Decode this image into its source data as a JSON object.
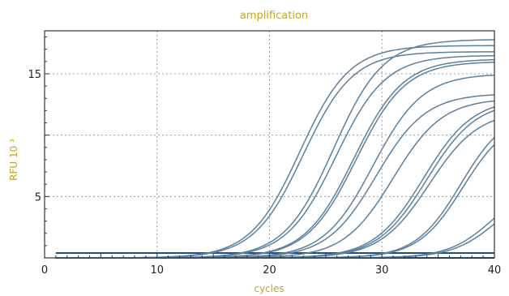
{
  "chart_data": {
    "type": "line",
    "title": "amplification",
    "xlabel": "cycles",
    "ylabel": "RFU 10 ³",
    "xlim": [
      0,
      40
    ],
    "ylim": [
      0,
      18.5
    ],
    "x_ticks": [
      0,
      10,
      20,
      30,
      40
    ],
    "y_ticks": [
      5,
      15
    ],
    "grid": true,
    "legend": "none",
    "colors": {
      "curve": "#5c7f9e",
      "baseline": "#1f4e86",
      "title": "#c9a227"
    },
    "curve_model": "baseline + height / (1 + exp(-(cycle - midpoint) / slope))",
    "series": [
      {
        "height": 17.3,
        "midpoint": 22.7,
        "slope": 2.2,
        "baseline": 0.0
      },
      {
        "height": 16.8,
        "midpoint": 23.0,
        "slope": 2.2,
        "baseline": 0.0
      },
      {
        "height": 17.8,
        "midpoint": 25.7,
        "slope": 2.2,
        "baseline": 0.0
      },
      {
        "height": 16.5,
        "midpoint": 25.9,
        "slope": 2.2,
        "baseline": 0.0
      },
      {
        "height": 16.2,
        "midpoint": 27.5,
        "slope": 2.2,
        "baseline": 0.0
      },
      {
        "height": 16.0,
        "midpoint": 27.7,
        "slope": 2.2,
        "baseline": 0.0
      },
      {
        "height": 15.0,
        "midpoint": 29.2,
        "slope": 2.2,
        "baseline": 0.0
      },
      {
        "height": 13.4,
        "midpoint": 29.5,
        "slope": 2.2,
        "baseline": 0.0
      },
      {
        "height": 13.0,
        "midpoint": 31.0,
        "slope": 2.2,
        "baseline": 0.0
      },
      {
        "height": 13.0,
        "midpoint": 33.7,
        "slope": 2.2,
        "baseline": 0.0
      },
      {
        "height": 12.8,
        "midpoint": 34.0,
        "slope": 2.2,
        "baseline": 0.0
      },
      {
        "height": 12.0,
        "midpoint": 34.2,
        "slope": 2.2,
        "baseline": 0.0
      },
      {
        "height": 12.0,
        "midpoint": 37.0,
        "slope": 2.0,
        "baseline": 0.0
      },
      {
        "height": 11.5,
        "midpoint": 37.2,
        "slope": 2.0,
        "baseline": 0.0
      },
      {
        "height": 6.5,
        "midpoint": 40.0,
        "slope": 2.0,
        "baseline": 0.0
      },
      {
        "height": 6.0,
        "midpoint": 40.3,
        "slope": 2.0,
        "baseline": 0.0
      }
    ],
    "baselines": [
      0.4,
      0.0
    ]
  }
}
